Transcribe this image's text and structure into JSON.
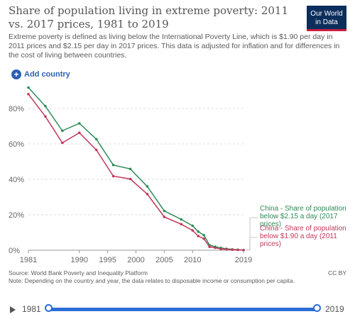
{
  "header": {
    "title": "Share of population living in extreme poverty: 2011 vs. 2017 prices, 1981 to 2019",
    "subtitle": "Extreme poverty is defined as living below the International Poverty Line, which is $1.90 per day in 2011 prices and $2.15 per day in 2017 prices. This data is adjusted for inflation and for differences in the cost of living between countries.",
    "logo_line1": "Our World",
    "logo_line2": "in Data"
  },
  "controls": {
    "add_country_label": "Add country"
  },
  "footer": {
    "source": "Source: World Bank Poverty and Inequality Platform",
    "note": "Note: Depending on the country and year, the data relates to disposable income or consumption per capita.",
    "license": "CC BY"
  },
  "timeline": {
    "start": "1981",
    "end": "2019"
  },
  "colors": {
    "series_2017": "#2e8b57",
    "series_2011": "#c0395b",
    "accent": "#2c6ed5"
  },
  "chart_data": {
    "type": "line",
    "title": "Share of population living in extreme poverty: 2011 vs. 2017 prices, 1981 to 2019",
    "xlim": [
      1981,
      2019
    ],
    "ylim": [
      0,
      90
    ],
    "x_ticks": [
      "1981",
      "1990",
      "1995",
      "2000",
      "2005",
      "2010",
      "2019"
    ],
    "y_ticks": [
      "0%",
      "20%",
      "40%",
      "60%",
      "80%"
    ],
    "grid": "horizontal dashed",
    "legend": "right, at line ends",
    "series": [
      {
        "name": "China - Share of population below $2.15 a day (2017 prices)",
        "color": "#2e8b57",
        "x": [
          1981,
          1984,
          1987,
          1990,
          1993,
          1996,
          1999,
          2002,
          2005,
          2008,
          2010,
          2011,
          2012,
          2013,
          2014,
          2015,
          2016,
          2017,
          2018,
          2019
        ],
        "y": [
          91.8,
          81.3,
          67.4,
          71.6,
          62.7,
          48.1,
          45.9,
          36.0,
          22.2,
          17.4,
          13.8,
          10.5,
          8.5,
          2.8,
          2.0,
          1.3,
          0.8,
          0.5,
          0.3,
          0.1
        ]
      },
      {
        "name": "China - Share of population below $1.90 a day (2011 prices)",
        "color": "#c0395b",
        "x": [
          1981,
          1984,
          1987,
          1990,
          1993,
          1996,
          1999,
          2002,
          2005,
          2008,
          2010,
          2011,
          2012,
          2013,
          2014,
          2015,
          2016,
          2017,
          2018,
          2019
        ],
        "y": [
          88.1,
          75.5,
          60.6,
          66.3,
          56.6,
          41.8,
          40.2,
          31.7,
          18.8,
          14.7,
          11.2,
          8.0,
          6.5,
          1.9,
          1.4,
          0.7,
          0.5,
          0.3,
          0.2,
          0.1
        ]
      }
    ],
    "legend_labels": [
      "China - Share of population below $2.15 a day (2017 prices)",
      "China - Share of population below $1.90 a day (2011 prices)"
    ]
  }
}
